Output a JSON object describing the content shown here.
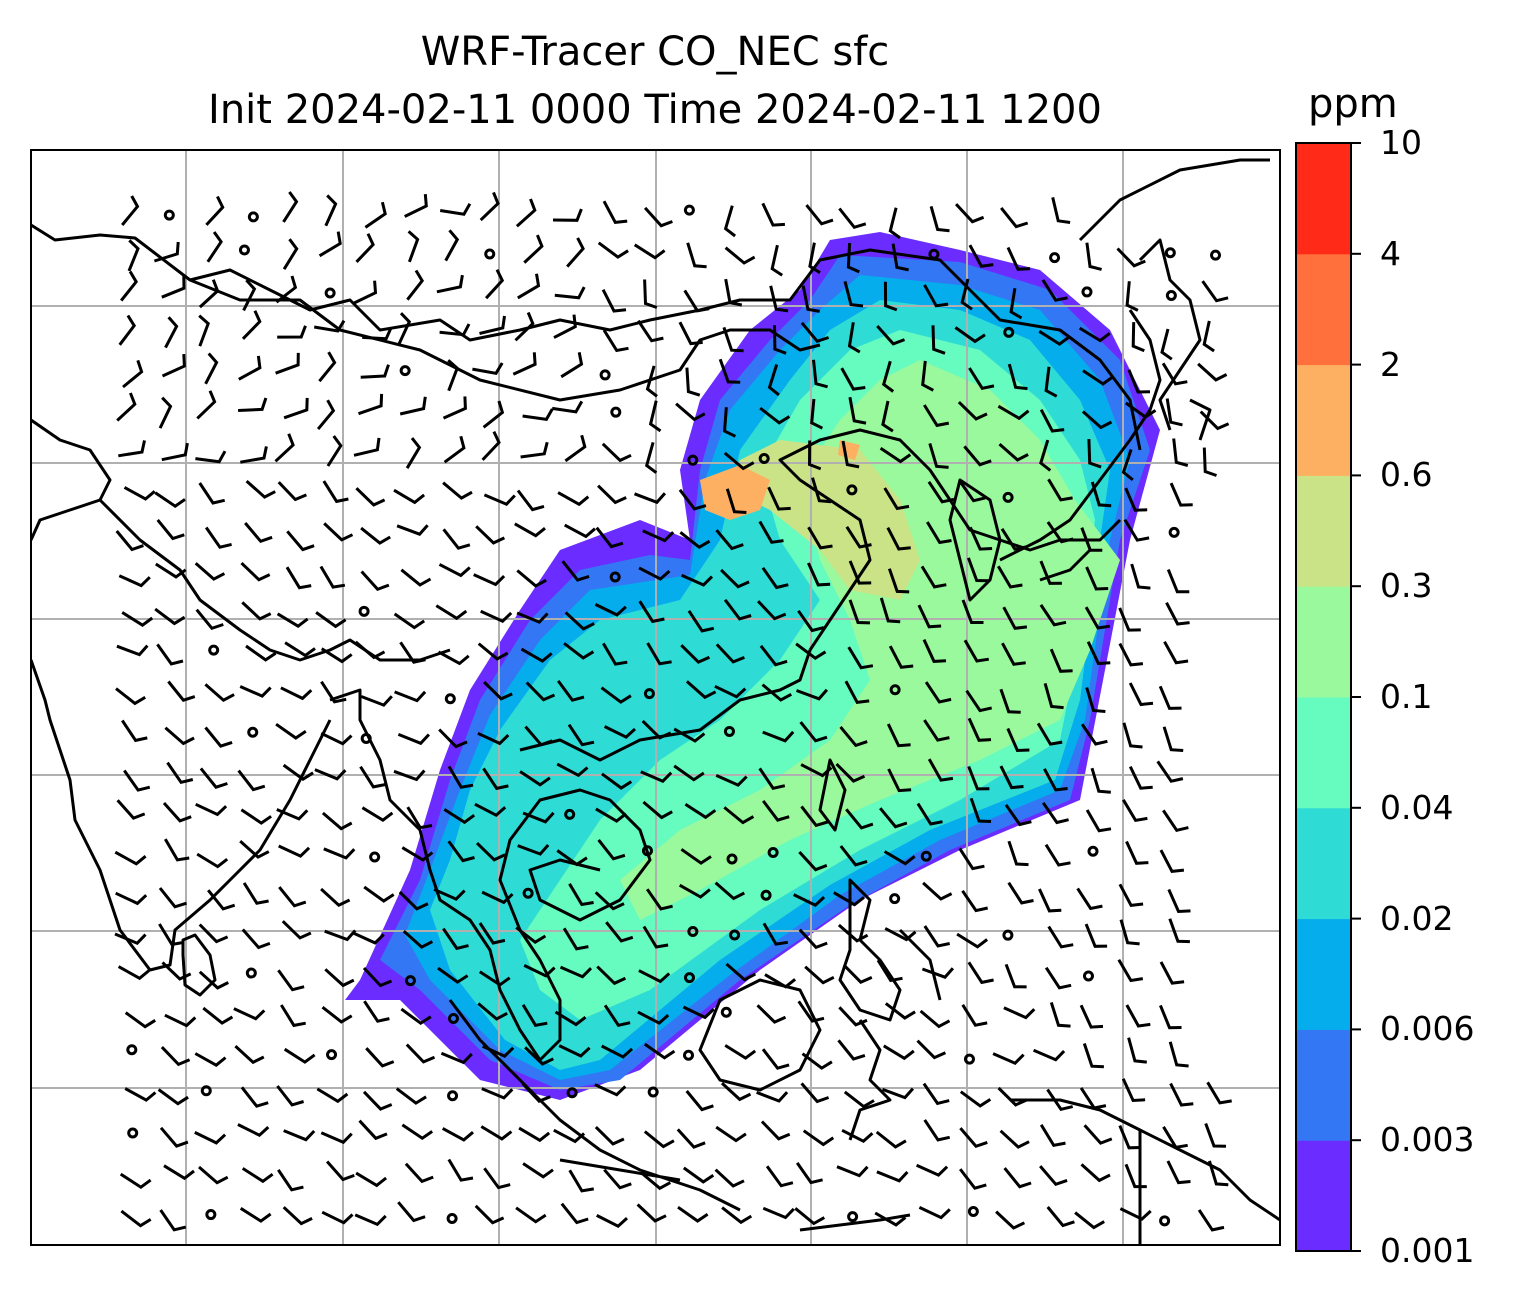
{
  "title": {
    "line1": "WRF-Tracer CO_NEC sfc",
    "line2": "Init 2024-02-11 0000 Time 2024-02-11 1200"
  },
  "colorbar": {
    "unit": "ppm",
    "levels": [
      "0.001",
      "0.003",
      "0.006",
      "0.02",
      "0.04",
      "0.1",
      "0.3",
      "0.6",
      "2",
      "4",
      "10"
    ],
    "colors": [
      "#6a2cff",
      "#3377f5",
      "#05adec",
      "#2edcd5",
      "#66fbbf",
      "#99f99c",
      "#cbe387",
      "#fdb061",
      "#ff703c",
      "#ff2a18"
    ]
  },
  "map": {
    "gridlines": true,
    "coastlines": true,
    "wind_barbs": true
  }
}
